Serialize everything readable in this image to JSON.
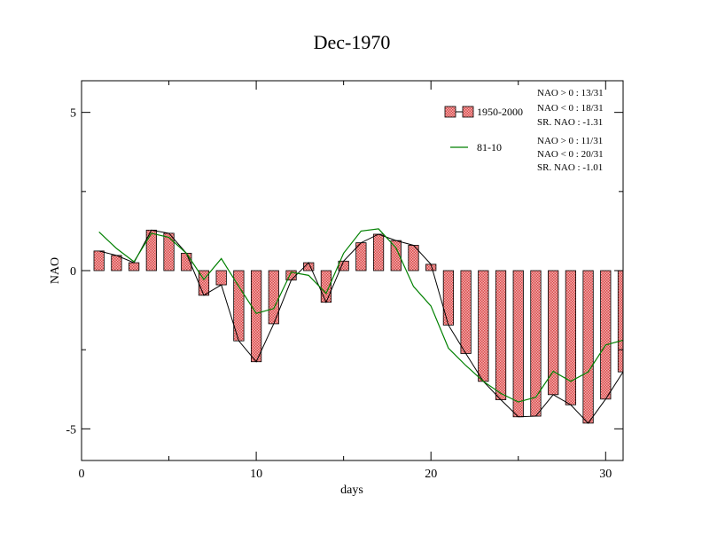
{
  "chart_data": {
    "type": "bar",
    "title": "Dec-1970",
    "xlabel": "days",
    "ylabel": "NAO",
    "xlim": [
      0,
      31
    ],
    "ylim": [
      -6,
      6
    ],
    "x_ticks": [
      0,
      10,
      20,
      30
    ],
    "y_ticks": [
      -5,
      0,
      5
    ],
    "y_tick_labels": [
      "-5",
      "0",
      "5"
    ],
    "x_tick_labels": [
      "0",
      "10",
      "20",
      "30"
    ],
    "grid": false,
    "legend_position": "top-right",
    "x": [
      1,
      2,
      3,
      4,
      5,
      6,
      7,
      8,
      9,
      10,
      11,
      12,
      13,
      14,
      15,
      16,
      17,
      18,
      19,
      20,
      21,
      22,
      23,
      24,
      25,
      26,
      27,
      28,
      29,
      30,
      31
    ],
    "series": [
      {
        "name": "1950-2000",
        "kind": "bar",
        "color": "#e87070",
        "values": [
          0.62,
          0.48,
          0.25,
          1.28,
          1.18,
          0.55,
          -0.78,
          -0.45,
          -2.22,
          -2.88,
          -1.68,
          -0.3,
          0.25,
          -1.0,
          0.3,
          0.88,
          1.15,
          0.95,
          0.8,
          0.2,
          -1.72,
          -2.62,
          -3.5,
          -4.08,
          -4.62,
          -4.6,
          -3.92,
          -4.24,
          -4.82,
          -4.06,
          -3.2
        ]
      },
      {
        "name": "81-10",
        "kind": "line",
        "color": "#008000",
        "values": [
          1.22,
          0.7,
          0.28,
          1.18,
          1.05,
          0.55,
          -0.28,
          0.38,
          -0.5,
          -1.35,
          -1.2,
          -0.05,
          -0.15,
          -0.72,
          0.55,
          1.25,
          1.32,
          0.72,
          -0.5,
          -1.12,
          -2.45,
          -3.0,
          -3.5,
          -3.88,
          -4.15,
          -4.0,
          -3.18,
          -3.5,
          -3.2,
          -2.35,
          -2.2
        ]
      }
    ],
    "stats_1950_2000": [
      "NAO > 0 : 13/31",
      "NAO < 0 : 18/31",
      "SR. NAO : -1.31"
    ],
    "stats_81_10": [
      "NAO > 0 : 11/31",
      "NAO < 0 : 20/31",
      "SR. NAO : -1.01"
    ]
  }
}
